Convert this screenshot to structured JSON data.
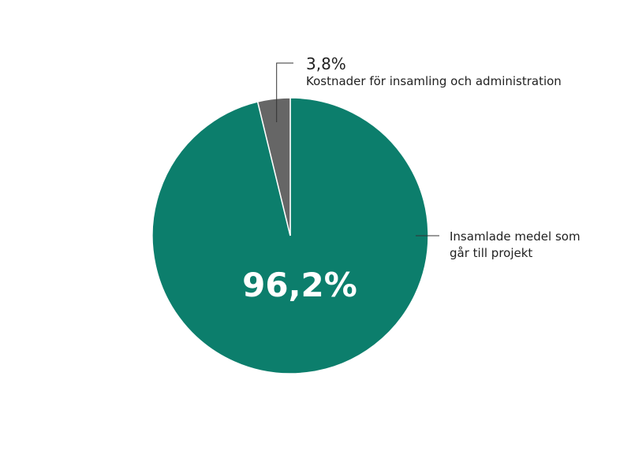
{
  "chart_data": {
    "type": "pie",
    "slices": [
      {
        "label": "Insamlade medel som går till projekt",
        "label_lines": [
          "Insamlade medel som",
          "går till projekt"
        ],
        "value": 96.2,
        "value_text": "96,2%",
        "color": "#0c7e6c"
      },
      {
        "label": "Kostnader för insamling och administration",
        "label_lines": [
          "Kostnader för insamling och administration"
        ],
        "value": 3.8,
        "value_text": "3,8%",
        "color": "#666666"
      }
    ],
    "start_angle_deg": 0,
    "direction": "clockwise",
    "legend": "none",
    "colors": {
      "slice_border": "#ffffff",
      "leader_line": "#333333",
      "text": "#222222",
      "inner_label": "#ffffff"
    }
  }
}
